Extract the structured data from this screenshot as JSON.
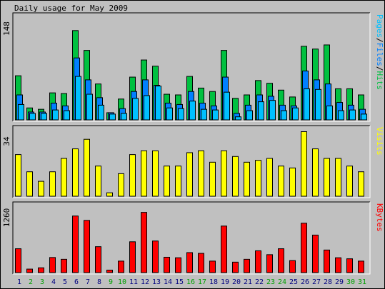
{
  "title": "Daily usage for May 2009",
  "colors": {
    "background": "#c0c0c0",
    "hits": "#00c040",
    "files": "#0080ff",
    "pages": "#00c0ff",
    "visits": "#ffff00",
    "kbytes": "#ff0000",
    "weekend_label": "#00a000",
    "weekday_label": "#000080"
  },
  "chart_data": [
    {
      "type": "bar",
      "name": "hits-files-pages",
      "y_axis_label": "148",
      "ylim": [
        0,
        148
      ],
      "legend": [
        {
          "text": "Pages",
          "color": "#00c0ff"
        },
        {
          "text": "/",
          "color": "#000000"
        },
        {
          "text": "Files",
          "color": "#0080ff"
        },
        {
          "text": "/",
          "color": "#000000"
        },
        {
          "text": "Hits",
          "color": "#00c040"
        }
      ],
      "series": [
        {
          "key": "hits",
          "values": [
            65,
            18,
            16,
            40,
            39,
            131,
            102,
            53,
            11,
            31,
            63,
            88,
            79,
            38,
            37,
            64,
            47,
            42,
            102,
            32,
            37,
            58,
            54,
            44,
            34,
            108,
            104,
            110,
            46,
            46,
            37
          ]
        },
        {
          "key": "files",
          "values": [
            37,
            12,
            12,
            25,
            21,
            91,
            59,
            33,
            11,
            17,
            42,
            59,
            51,
            25,
            23,
            42,
            25,
            21,
            63,
            10,
            22,
            37,
            35,
            22,
            21,
            72,
            59,
            53,
            26,
            22,
            16
          ]
        },
        {
          "key": "pages",
          "values": [
            23,
            10,
            10,
            15,
            14,
            64,
            38,
            22,
            9,
            10,
            32,
            36,
            50,
            18,
            17,
            28,
            16,
            15,
            41,
            5,
            14,
            27,
            29,
            14,
            18,
            46,
            45,
            21,
            14,
            15,
            9
          ]
        }
      ]
    },
    {
      "type": "bar",
      "name": "visits",
      "y_axis_label": "34",
      "ylim": [
        0,
        34
      ],
      "legend": [
        {
          "text": "Visits",
          "color": "#ffff00"
        }
      ],
      "series": [
        {
          "key": "visits",
          "values": [
            22,
            13,
            8,
            13,
            20,
            25,
            30,
            16,
            2,
            12,
            22,
            24,
            24,
            16,
            16,
            23,
            24,
            18,
            24,
            21,
            18,
            19,
            20,
            16,
            15,
            34,
            25,
            20,
            20,
            16,
            13
          ]
        }
      ]
    },
    {
      "type": "bar",
      "name": "kbytes",
      "y_axis_label": "1260",
      "ylim": [
        0,
        1260
      ],
      "legend": [
        {
          "text": "KBytes",
          "color": "#ff0000"
        }
      ],
      "series": [
        {
          "key": "kbytes",
          "values": [
            470,
            75,
            100,
            300,
            265,
            1105,
            1020,
            510,
            55,
            230,
            605,
            1175,
            620,
            305,
            295,
            395,
            380,
            230,
            910,
            210,
            265,
            430,
            355,
            470,
            240,
            965,
            735,
            445,
            295,
            275,
            230
          ]
        }
      ]
    }
  ],
  "x_labels": [
    {
      "text": "1",
      "weekend": false
    },
    {
      "text": "2",
      "weekend": true
    },
    {
      "text": "3",
      "weekend": true
    },
    {
      "text": "4",
      "weekend": false
    },
    {
      "text": "5",
      "weekend": false
    },
    {
      "text": "6",
      "weekend": false
    },
    {
      "text": "7",
      "weekend": false
    },
    {
      "text": "8",
      "weekend": false
    },
    {
      "text": "9",
      "weekend": true
    },
    {
      "text": "10",
      "weekend": true
    },
    {
      "text": "11",
      "weekend": false
    },
    {
      "text": "12",
      "weekend": false
    },
    {
      "text": "13",
      "weekend": false
    },
    {
      "text": "14",
      "weekend": false
    },
    {
      "text": "15",
      "weekend": false
    },
    {
      "text": "16",
      "weekend": true
    },
    {
      "text": "17",
      "weekend": true
    },
    {
      "text": "18",
      "weekend": false
    },
    {
      "text": "19",
      "weekend": false
    },
    {
      "text": "20",
      "weekend": false
    },
    {
      "text": "21",
      "weekend": false
    },
    {
      "text": "22",
      "weekend": false
    },
    {
      "text": "23",
      "weekend": true
    },
    {
      "text": "24",
      "weekend": true
    },
    {
      "text": "25",
      "weekend": false
    },
    {
      "text": "26",
      "weekend": false
    },
    {
      "text": "27",
      "weekend": false
    },
    {
      "text": "28",
      "weekend": false
    },
    {
      "text": "29",
      "weekend": false
    },
    {
      "text": "30",
      "weekend": true
    },
    {
      "text": "31",
      "weekend": true
    }
  ]
}
